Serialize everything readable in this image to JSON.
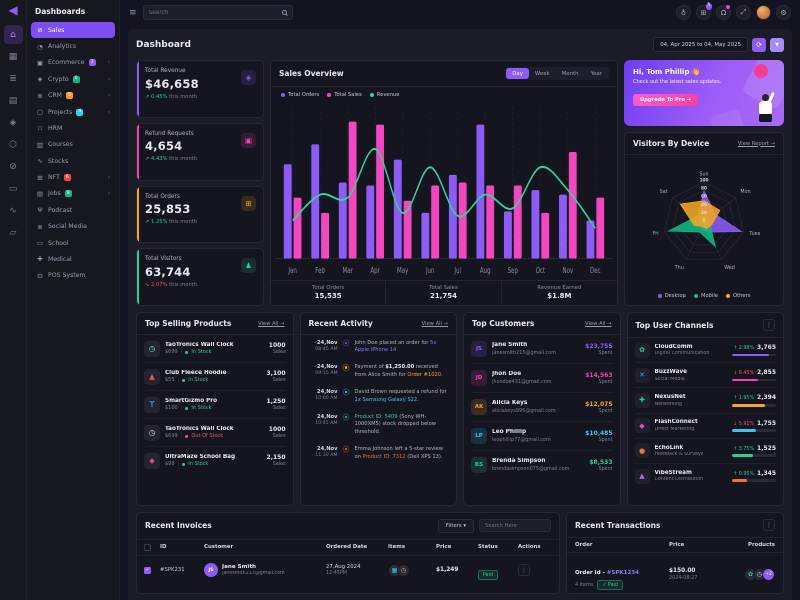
{
  "brand_logo": "dashboards-logo",
  "rail": {
    "icons": [
      "home-icon",
      "apps-icon",
      "layers-icon",
      "doc-icon",
      "gem-icon",
      "gift-icon",
      "disc-icon",
      "card-icon",
      "chart-icon",
      "wallet-icon"
    ],
    "active_index": 0
  },
  "sidebar": {
    "title": "Dashboards",
    "items": [
      {
        "label": "Sales",
        "icon": "sales-icon",
        "active": true
      },
      {
        "label": "Analytics",
        "icon": "analytics-icon"
      },
      {
        "label": "Ecommerce",
        "icon": "ecommerce-icon",
        "badge": "3",
        "badge_color": "#8b5cf6",
        "arrow": true
      },
      {
        "label": "Crypto",
        "icon": "crypto-icon",
        "badge": "6",
        "badge_color": "#10b981",
        "arrow": true
      },
      {
        "label": "CRM",
        "icon": "crm-icon",
        "badge": "5",
        "badge_color": "#f59e0b",
        "arrow": true
      },
      {
        "label": "Projects",
        "icon": "projects-icon",
        "badge": "4",
        "badge_color": "#22d3ee",
        "arrow": true
      },
      {
        "label": "HRM",
        "icon": "hrm-icon"
      },
      {
        "label": "Courses",
        "icon": "courses-icon"
      },
      {
        "label": "Stocks",
        "icon": "stocks-icon"
      },
      {
        "label": "NFT",
        "icon": "nft-icon",
        "badge": "6",
        "badge_color": "#ef4444",
        "arrow": true
      },
      {
        "label": "Jobs",
        "icon": "jobs-icon",
        "badge": "9",
        "badge_color": "#10b981",
        "arrow": true
      },
      {
        "label": "Podcast",
        "icon": "podcast-icon"
      },
      {
        "label": "Social Media",
        "icon": "social-media-icon"
      },
      {
        "label": "School",
        "icon": "school-icon"
      },
      {
        "label": "Medical",
        "icon": "medical-icon"
      },
      {
        "label": "POS System",
        "icon": "pos-icon"
      }
    ]
  },
  "topbar": {
    "search_placeholder": "Search",
    "cart_badge": "5",
    "icons": [
      "globe-icon",
      "cart-icon",
      "bell-icon",
      "fullscreen-icon",
      "avatar",
      "settings-icon"
    ]
  },
  "header": {
    "title": "Dashboard",
    "date_range": "04, Apr 2025 to 04, May 2025"
  },
  "stats": [
    {
      "label": "Total Revenue",
      "value": "$46,658",
      "delta": "0.45%",
      "suffix": "this month",
      "trend": "up",
      "accent": "#8b5cf6",
      "icon": "bag-icon"
    },
    {
      "label": "Refund Requests",
      "value": "4,654",
      "delta": "4.43%",
      "suffix": "this month",
      "trend": "up",
      "accent": "#f143b0",
      "icon": "box-icon"
    },
    {
      "label": "Total Orders",
      "value": "25,853",
      "delta": "1.25%",
      "suffix": "this month",
      "trend": "up",
      "accent": "#f5a623",
      "icon": "cart-icon"
    },
    {
      "label": "Total Visitors",
      "value": "63,744",
      "delta": "2.07%",
      "suffix": "this month",
      "trend": "down",
      "accent": "#2ecc8e",
      "icon": "users-icon"
    }
  ],
  "sales_overview": {
    "title": "Sales Overview",
    "tabs": [
      "Day",
      "Week",
      "Month",
      "Year"
    ],
    "active_tab": "Day",
    "summary": [
      {
        "label": "Total Orders",
        "value": "15,535"
      },
      {
        "label": "Total Sales",
        "value": "21,754"
      },
      {
        "label": "Revenue Earned",
        "value": "$1.8M"
      }
    ]
  },
  "chart_data": [
    {
      "type": "bar",
      "title": "Sales Overview",
      "categories": [
        "Jan",
        "Feb",
        "Mar",
        "Apr",
        "May",
        "Jun",
        "Jul",
        "Aug",
        "Sep",
        "Oct",
        "Nov",
        "Dec"
      ],
      "series": [
        {
          "name": "Total Orders",
          "kind": "bar",
          "color": "#8b5cf6",
          "values": [
            62,
            75,
            50,
            48,
            65,
            30,
            55,
            88,
            31,
            45,
            42,
            25
          ]
        },
        {
          "name": "Total Sales",
          "kind": "bar",
          "color": "#f148c0",
          "values": [
            40,
            30,
            90,
            88,
            38,
            48,
            50,
            48,
            48,
            30,
            70,
            40
          ]
        },
        {
          "name": "Revenue",
          "kind": "line",
          "color": "#34d399",
          "values": [
            25,
            42,
            40,
            72,
            30,
            60,
            28,
            42,
            33,
            60,
            45,
            20
          ]
        }
      ],
      "ylim": [
        0,
        100
      ],
      "legend_position": "top",
      "grid": "dashed-vertical"
    },
    {
      "type": "radar",
      "title": "Visitors By Device",
      "categories": [
        "Sun",
        "Mon",
        "Tues",
        "Wed",
        "Thu",
        "Fri",
        "Sat"
      ],
      "series": [
        {
          "name": "Desktop",
          "color": "#8b5cf6",
          "values": [
            80,
            35,
            95,
            25,
            15,
            15,
            20
          ]
        },
        {
          "name": "Mobile",
          "color": "#10b981",
          "values": [
            30,
            15,
            15,
            65,
            25,
            90,
            25
          ]
        },
        {
          "name": "Others",
          "color": "#f5a623",
          "values": [
            55,
            50,
            20,
            15,
            10,
            25,
            75
          ]
        }
      ],
      "ticks": [
        0,
        20,
        40,
        60,
        80,
        100
      ],
      "legend_position": "bottom"
    }
  ],
  "promo": {
    "greeting": "Hi, Tom Phillip",
    "wave": "👋",
    "subtitle": "Check out the latest sales updates.",
    "cta": "Upgrade To Pro →"
  },
  "visitors": {
    "title": "Visitors By Device",
    "link": "View Report →"
  },
  "top_selling": {
    "title": "Top Selling Products",
    "view_all": "View All →",
    "sales_label": "Sales",
    "products": [
      {
        "name": "TaoTronics Wall Clock",
        "price": "$699",
        "stock": "In Stock",
        "stock_state": "in",
        "sales": "1000",
        "icon": "wall-clock-icon",
        "icon_color": "#9fd8c9"
      },
      {
        "name": "Club Fleece Hoodie",
        "price": "$55",
        "stock": "In Stock",
        "stock_state": "in",
        "sales": "3,100",
        "icon": "hoodie-icon",
        "icon_color": "#e0574f"
      },
      {
        "name": "SmartGizmo Pro",
        "price": "$100",
        "stock": "In Stock",
        "stock_state": "in",
        "sales": "1,250",
        "icon": "earbuds-icon",
        "icon_color": "#38c8ec"
      },
      {
        "name": "TaoTronics Wall Clock",
        "price": "$699",
        "stock": "Out Of Stock",
        "stock_state": "out",
        "sales": "1000",
        "icon": "wall-clock-icon",
        "icon_color": "#e8e3d5"
      },
      {
        "name": "UltraMaze School Bag",
        "price": "$99",
        "stock": "In Stock",
        "stock_state": "in",
        "sales": "2,150",
        "icon": "school-bag-icon",
        "icon_color": "#d4457e"
      }
    ]
  },
  "recent_activity": {
    "title": "Recent Activity",
    "view_all": "View All →",
    "items": [
      {
        "date": "24,Nov",
        "time": "08:45 AM",
        "dot": "#8b5cf6",
        "parts": [
          {
            "text": "John Doe placed an order for "
          },
          {
            "text": "5x Apple iPhone 14",
            "color": "#8b7bf5"
          }
        ]
      },
      {
        "date": "24,Nov",
        "time": "09:15 AM",
        "dot": "#f5a623",
        "parts": [
          {
            "text": "Payment of "
          },
          {
            "text": "$1,250.00",
            "bold": true
          },
          {
            "text": " received from Alice Smith for "
          },
          {
            "text": "Order #1020",
            "color": "#f5a623"
          },
          {
            "text": "."
          }
        ]
      },
      {
        "date": "24,Nov",
        "time": "10:00 AM",
        "dot": "#38c8ec",
        "parts": [
          {
            "text": "David Brown requested a refund for "
          },
          {
            "text": "1x Samsung Galaxy S22",
            "color": "#38c8ec"
          },
          {
            "text": "."
          }
        ]
      },
      {
        "date": "24,Nov",
        "time": "10:45 AM",
        "dot": "#2ecc8e",
        "parts": [
          {
            "text": "Product ID: 5409",
            "color": "#2ecc8e"
          },
          {
            "text": " (Sony WH-1000XM5) stock dropped below threshold."
          }
        ]
      },
      {
        "date": "24,Nov",
        "time": "11:30 AM",
        "dot": "#f4713a",
        "parts": [
          {
            "text": "Emma Johnson left a 5-star review on "
          },
          {
            "text": "Product ID: 7312",
            "color": "#f4713a"
          },
          {
            "text": " (Dell XPS 13)."
          }
        ]
      }
    ]
  },
  "top_customers": {
    "title": "Top Customers",
    "view_all": "View All →",
    "spent_label": "Spent",
    "customers": [
      {
        "initials": "JS",
        "name": "Jane Smith",
        "email": "janesmith215@gmail.com",
        "amount": "$23,755",
        "color": "#8b5cf6"
      },
      {
        "initials": "JD",
        "name": "Jhon Doe",
        "email": "jhondoe431@gmail.com",
        "amount": "$14,563",
        "color": "#f143b0"
      },
      {
        "initials": "AK",
        "name": "Alicia Keys",
        "email": "aliciakeys995@gmail.com",
        "amount": "$12,075",
        "color": "#f5a623"
      },
      {
        "initials": "LP",
        "name": "Leo Phillip",
        "email": "leophillip77@gmail.com",
        "amount": "$10,485",
        "color": "#38c8ec"
      },
      {
        "initials": "BS",
        "name": "Brenda Simpson",
        "email": "brendasimpson075@gmail.com",
        "amount": "$8,533",
        "color": "#2ecc8e"
      }
    ]
  },
  "top_channels": {
    "title": "Top User Channels",
    "channels": [
      {
        "name": "CloudComm",
        "category": "Digital Communication",
        "delta": "2.98%",
        "trend": "up",
        "value": "3,765",
        "bar_color": "#8b5cf6",
        "bar_pct": 84,
        "icon": "flower-icon",
        "icon_color": "#2ecc8e"
      },
      {
        "name": "BuzzWave",
        "category": "Social Media",
        "delta": "6.45%",
        "trend": "down",
        "value": "2,855",
        "bar_color": "#f143b0",
        "bar_pct": 58,
        "icon": "x-icon",
        "icon_color": "#38a8ec"
      },
      {
        "name": "NexusNet",
        "category": "Networking",
        "delta": "1.95%",
        "trend": "up",
        "value": "2,394",
        "bar_color": "#f5a623",
        "bar_pct": 74,
        "icon": "cross-icon",
        "icon_color": "#2ecc8e"
      },
      {
        "name": "FlashConnect",
        "category": "Direct Marketing",
        "delta": "5.91%",
        "trend": "down",
        "value": "1,755",
        "bar_color": "#38c8ec",
        "bar_pct": 55,
        "icon": "diamond-icon",
        "icon_color": "#e84fc0"
      },
      {
        "name": "EchoLink",
        "category": "Feedback & Surveys",
        "delta": "3.75%",
        "trend": "up",
        "value": "1,525",
        "bar_color": "#2ecc8e",
        "bar_pct": 48,
        "icon": "dot-icon",
        "icon_color": "#f4713a"
      },
      {
        "name": "VibeStream",
        "category": "Content Distribution",
        "delta": "0.95%",
        "trend": "up",
        "value": "1,345",
        "bar_color": "#f4713a",
        "bar_pct": 33,
        "icon": "triangle-icon",
        "icon_color": "#a86af6"
      }
    ]
  },
  "recent_invoices": {
    "title": "Recent Invoices",
    "filters_label": "Filters ▾",
    "search_placeholder": "Search Here",
    "columns": [
      "ID",
      "Customer",
      "Ordered Date",
      "Items",
      "Price",
      "Status",
      "Actions"
    ],
    "rows": [
      {
        "id": "#SPK231",
        "customer": "Jane Smith",
        "initials": "JS",
        "email": "janesmith213@gmail.com",
        "date": "27,Aug 2024",
        "time": "12:45PM",
        "price": "$1,249",
        "status": "Paid",
        "checked": true,
        "item_icons": [
          "laptop-icon",
          "watch-icon"
        ]
      }
    ]
  },
  "recent_transactions": {
    "title": "Recent Transactions",
    "columns": [
      "Order",
      "Price",
      "Products"
    ],
    "rows": [
      {
        "order_prefix": "Order Id - ",
        "order_ref": "#SPK1234",
        "items": "4 Items",
        "status": "✓ Paid",
        "price": "$150.00",
        "date": "2024-08-27",
        "product_icons": [
          "flower-icon",
          "wall-clock-icon"
        ],
        "extra": "+2"
      }
    ]
  }
}
